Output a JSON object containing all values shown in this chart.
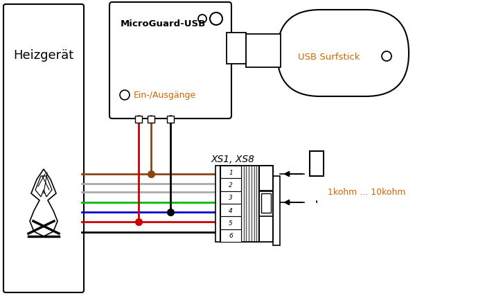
{
  "bg_color": "#ffffff",
  "text_color": "#000000",
  "orange_color": "#cc6600",
  "heizgeraet_label": "Heizgerät",
  "microguard_label": "MicroGuard-USB",
  "ein_ausgaenge_label": "Ein-/Ausgänge",
  "usb_surfstick_label": "USB Surfstick",
  "xs_label": "XS1, XS8",
  "resistor_label": "1kohm ... 10kohm",
  "pin_labels": [
    "1",
    "2",
    "3",
    "4",
    "5",
    "6"
  ],
  "wire_colors_v": [
    "#cc0000",
    "#8B4513",
    "#000000"
  ],
  "wire_colors_h": [
    "#8B4513",
    "#aaaaaa",
    "#aaaaaa",
    "#00bb00",
    "#0000cc",
    "#cc0000",
    "#000000"
  ],
  "lw": 2.0
}
